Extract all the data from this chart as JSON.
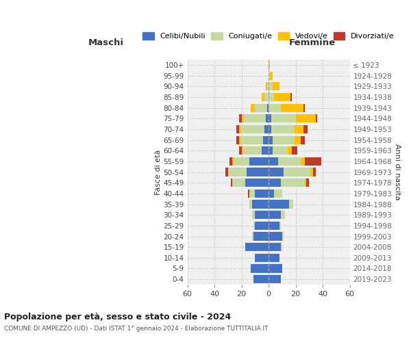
{
  "age_groups": [
    "0-4",
    "5-9",
    "10-14",
    "15-19",
    "20-24",
    "25-29",
    "30-34",
    "35-39",
    "40-44",
    "45-49",
    "50-54",
    "55-59",
    "60-64",
    "65-69",
    "70-74",
    "75-79",
    "80-84",
    "85-89",
    "90-94",
    "95-99",
    "100+"
  ],
  "birth_years": [
    "2019-2023",
    "2014-2018",
    "2009-2013",
    "2004-2008",
    "1999-2003",
    "1994-1998",
    "1989-1993",
    "1984-1988",
    "1979-1983",
    "1974-1978",
    "1969-1973",
    "1964-1968",
    "1959-1963",
    "1954-1958",
    "1949-1953",
    "1944-1948",
    "1939-1943",
    "1934-1938",
    "1929-1933",
    "1924-1928",
    "≤ 1923"
  ],
  "maschi": {
    "celibi": [
      11,
      13,
      10,
      17,
      11,
      10,
      10,
      12,
      10,
      17,
      16,
      14,
      5,
      4,
      3,
      2,
      1,
      0,
      0,
      0,
      0
    ],
    "coniugati": [
      0,
      0,
      0,
      0,
      1,
      1,
      2,
      2,
      4,
      10,
      14,
      12,
      14,
      17,
      18,
      16,
      9,
      3,
      1,
      0,
      0
    ],
    "vedovi": [
      0,
      0,
      0,
      0,
      0,
      0,
      0,
      0,
      0,
      0,
      0,
      1,
      1,
      1,
      1,
      2,
      3,
      2,
      1,
      0,
      0
    ],
    "divorziati": [
      0,
      0,
      0,
      0,
      0,
      0,
      0,
      0,
      1,
      1,
      2,
      2,
      2,
      2,
      2,
      2,
      0,
      0,
      0,
      0,
      0
    ]
  },
  "femmine": {
    "nubili": [
      9,
      10,
      8,
      9,
      10,
      8,
      9,
      15,
      4,
      9,
      11,
      7,
      3,
      3,
      2,
      2,
      0,
      0,
      0,
      0,
      0
    ],
    "coniugate": [
      0,
      0,
      0,
      1,
      1,
      1,
      3,
      3,
      6,
      18,
      20,
      17,
      11,
      16,
      17,
      18,
      9,
      4,
      3,
      1,
      0
    ],
    "vedove": [
      0,
      0,
      0,
      0,
      0,
      0,
      0,
      0,
      0,
      1,
      2,
      3,
      3,
      5,
      7,
      15,
      17,
      12,
      5,
      2,
      1
    ],
    "divorziate": [
      0,
      0,
      0,
      0,
      0,
      0,
      0,
      0,
      0,
      2,
      2,
      12,
      4,
      3,
      3,
      1,
      1,
      1,
      0,
      0,
      0
    ]
  },
  "colors": {
    "celibi": "#4472c4",
    "coniugati": "#c5d9a0",
    "vedovi": "#ffc000",
    "divorziati": "#c0392b"
  },
  "title": "Popolazione per età, sesso e stato civile - 2024",
  "subtitle": "COMUNE DI AMPEZZO (UD) - Dati ISTAT 1° gennaio 2024 - Elaborazione TUTTITALIA.IT",
  "xlabel_left": "Maschi",
  "xlabel_right": "Femmine",
  "ylabel_left": "Fasce di età",
  "ylabel_right": "Anni di nascita",
  "xlim": 60,
  "legend_labels": [
    "Celibi/Nubili",
    "Coniugati/e",
    "Vedovi/e",
    "Divorziati/e"
  ],
  "bg_color": "#f0f0f0",
  "grid_color": "#cccccc"
}
